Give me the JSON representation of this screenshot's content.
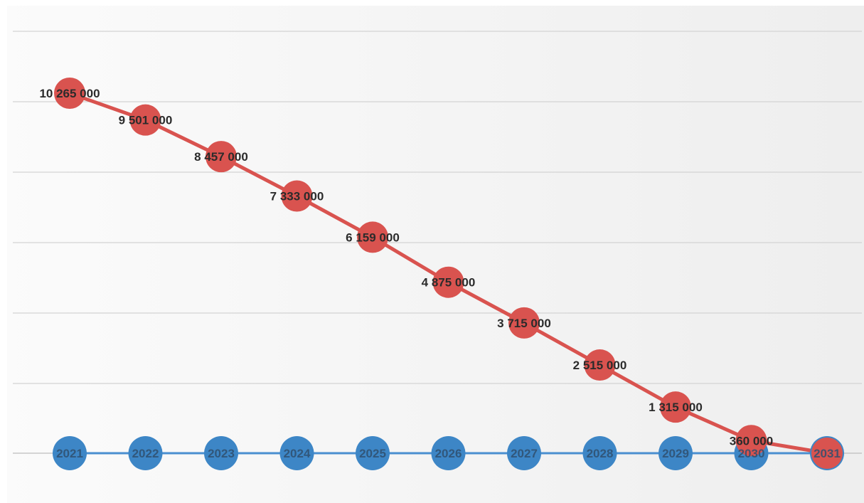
{
  "chart_data": {
    "type": "line",
    "title": "",
    "xlabel": "",
    "ylabel": "",
    "ylim": [
      0,
      10500000
    ],
    "grid": true,
    "series": [
      {
        "color": "#d9534f",
        "values": [
          10265000,
          9501000,
          8457000,
          7333000,
          6159000,
          4875000,
          3715000,
          2515000,
          1315000,
          360000,
          0
        ],
        "labels": [
          "10 265 000",
          "9 501 000",
          "8 457 000",
          "7 333 000",
          "6 159 000",
          "4 875 000",
          "3 715 000",
          "2 515 000",
          "1 315 000",
          "360 000",
          ""
        ]
      },
      {
        "color": "#3d86c6",
        "values": [
          0,
          0,
          0,
          0,
          0,
          0,
          0,
          0,
          0,
          0,
          0
        ],
        "labels": [
          "2021",
          "2022",
          "2023",
          "2024",
          "2025",
          "2026",
          "2027",
          "2028",
          "2029",
          "2030",
          "2031"
        ]
      }
    ],
    "legend": "none"
  }
}
